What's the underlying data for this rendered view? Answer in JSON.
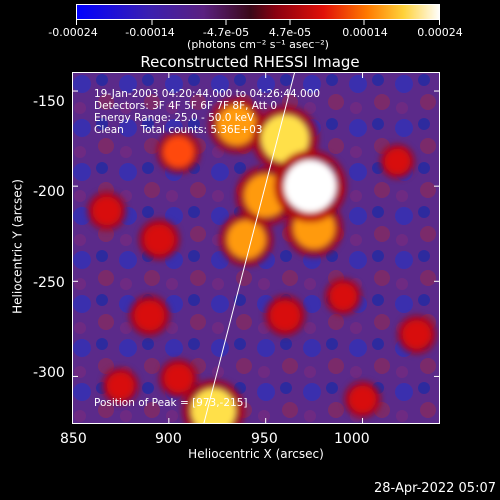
{
  "chart_data": {
    "type": "heatmap",
    "title": "Reconstructed RHESSI Image",
    "xlabel": "Heliocentric X (arcsec)",
    "ylabel": "Heliocentric Y (arcsec)",
    "xlim": [
      850,
      1040
    ],
    "ylim": [
      -325,
      -140
    ],
    "x_ticks": [
      850,
      900,
      950,
      1000
    ],
    "y_ticks": [
      -150,
      -200,
      -250,
      -300
    ],
    "colorbar": {
      "ticks": [
        "-0.00024",
        "-0.00014",
        "-4.7e-05",
        "4.7e-05",
        "0.00014",
        "0.00024"
      ],
      "label": "(photons cm⁻² s⁻¹ asec⁻²)",
      "range": [
        -0.00024,
        0.00024
      ]
    },
    "annotations": [
      "19-Jan-2003 04:20:44.000 to 04:26:44.000",
      "Detectors: 3F 4F 5F 6F 7F 8F, Att 0",
      "Energy Range: 25.0 - 50.0 keV",
      "Clean     Total counts: 5.36E+03"
    ],
    "peak_label": "Position of Peak = [973,-215]",
    "peak": [
      973,
      -215
    ],
    "sources": [
      {
        "x": 960,
        "y": -175,
        "value": 0.00021
      },
      {
        "x": 973,
        "y": -200,
        "value": 0.00024
      },
      {
        "x": 950,
        "y": -205,
        "value": 0.00018
      },
      {
        "x": 940,
        "y": -228,
        "value": 0.00015
      },
      {
        "x": 935,
        "y": -168,
        "value": 0.00016
      },
      {
        "x": 975,
        "y": -222,
        "value": 0.00017
      },
      {
        "x": 905,
        "y": -182,
        "value": 0.0001
      },
      {
        "x": 895,
        "y": -228,
        "value": 9e-05
      },
      {
        "x": 890,
        "y": -268,
        "value": 9e-05
      },
      {
        "x": 868,
        "y": -213,
        "value": 8e-05
      },
      {
        "x": 960,
        "y": -268,
        "value": 9e-05
      },
      {
        "x": 990,
        "y": -258,
        "value": 7e-05
      },
      {
        "x": 1028,
        "y": -278,
        "value": 8e-05
      },
      {
        "x": 1018,
        "y": -187,
        "value": 6e-05
      },
      {
        "x": 923,
        "y": -318,
        "value": 0.00019
      },
      {
        "x": 905,
        "y": -301,
        "value": 8e-05
      },
      {
        "x": 875,
        "y": -305,
        "value": 7e-05
      },
      {
        "x": 1000,
        "y": -312,
        "value": 7e-05
      }
    ],
    "limb_line": [
      [
        918,
        -325
      ],
      [
        965,
        -140
      ]
    ]
  },
  "timestamp": "28-Apr-2022 05:07"
}
